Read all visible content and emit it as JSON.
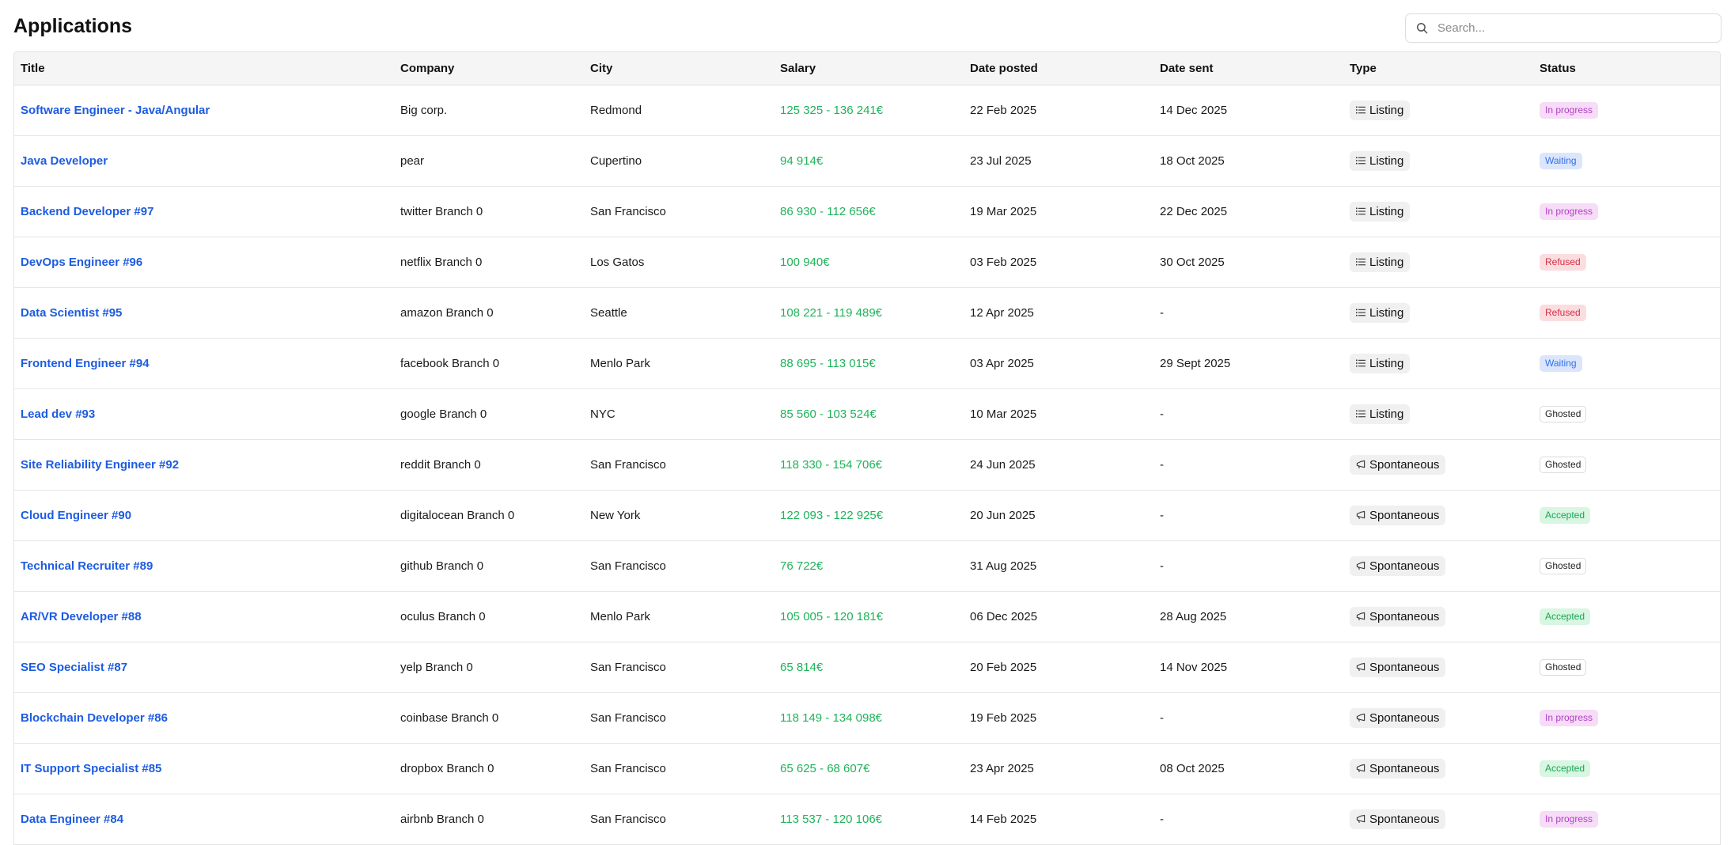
{
  "page": {
    "title": "Applications"
  },
  "search": {
    "placeholder": "Search..."
  },
  "table": {
    "headers": {
      "title": "Title",
      "company": "Company",
      "city": "City",
      "salary": "Salary",
      "date_posted": "Date posted",
      "date_sent": "Date sent",
      "type": "Type",
      "status": "Status"
    },
    "rows": [
      {
        "title": "Software Engineer - Java/Angular",
        "company": "Big corp.",
        "city": "Redmond",
        "salary": "125 325 - 136 241€",
        "date_posted": "22 Feb 2025",
        "date_sent": "14 Dec 2025",
        "type": "Listing",
        "type_icon": "list-icon",
        "status": "In progress",
        "status_key": "inprogress"
      },
      {
        "title": "Java Developer",
        "company": "pear",
        "city": "Cupertino",
        "salary": "94 914€",
        "date_posted": "23 Jul 2025",
        "date_sent": "18 Oct 2025",
        "type": "Listing",
        "type_icon": "list-icon",
        "status": "Waiting",
        "status_key": "waiting"
      },
      {
        "title": "Backend Developer #97",
        "company": "twitter Branch 0",
        "city": "San Francisco",
        "salary": "86 930 - 112 656€",
        "date_posted": "19 Mar 2025",
        "date_sent": "22 Dec 2025",
        "type": "Listing",
        "type_icon": "list-icon",
        "status": "In progress",
        "status_key": "inprogress"
      },
      {
        "title": "DevOps Engineer #96",
        "company": "netflix Branch 0",
        "city": "Los Gatos",
        "salary": "100 940€",
        "date_posted": "03 Feb 2025",
        "date_sent": "30 Oct 2025",
        "type": "Listing",
        "type_icon": "list-icon",
        "status": "Refused",
        "status_key": "refused"
      },
      {
        "title": "Data Scientist #95",
        "company": "amazon Branch 0",
        "city": "Seattle",
        "salary": "108 221 - 119 489€",
        "date_posted": "12 Apr 2025",
        "date_sent": "-",
        "type": "Listing",
        "type_icon": "list-icon",
        "status": "Refused",
        "status_key": "refused"
      },
      {
        "title": "Frontend Engineer #94",
        "company": "facebook Branch 0",
        "city": "Menlo Park",
        "salary": "88 695 - 113 015€",
        "date_posted": "03 Apr 2025",
        "date_sent": "29 Sept 2025",
        "type": "Listing",
        "type_icon": "list-icon",
        "status": "Waiting",
        "status_key": "waiting"
      },
      {
        "title": "Lead dev #93",
        "company": "google Branch 0",
        "city": "NYC",
        "salary": "85 560 - 103 524€",
        "date_posted": "10 Mar 2025",
        "date_sent": "-",
        "type": "Listing",
        "type_icon": "list-icon",
        "status": "Ghosted",
        "status_key": "ghosted"
      },
      {
        "title": "Site Reliability Engineer #92",
        "company": "reddit Branch 0",
        "city": "San Francisco",
        "salary": "118 330 - 154 706€",
        "date_posted": "24 Jun 2025",
        "date_sent": "-",
        "type": "Spontaneous",
        "type_icon": "megaphone-icon",
        "status": "Ghosted",
        "status_key": "ghosted"
      },
      {
        "title": "Cloud Engineer #90",
        "company": "digitalocean Branch 0",
        "city": "New York",
        "salary": "122 093 - 122 925€",
        "date_posted": "20 Jun 2025",
        "date_sent": "-",
        "type": "Spontaneous",
        "type_icon": "megaphone-icon",
        "status": "Accepted",
        "status_key": "accepted"
      },
      {
        "title": "Technical Recruiter #89",
        "company": "github Branch 0",
        "city": "San Francisco",
        "salary": "76 722€",
        "date_posted": "31 Aug 2025",
        "date_sent": "-",
        "type": "Spontaneous",
        "type_icon": "megaphone-icon",
        "status": "Ghosted",
        "status_key": "ghosted"
      },
      {
        "title": "AR/VR Developer #88",
        "company": "oculus Branch 0",
        "city": "Menlo Park",
        "salary": "105 005 - 120 181€",
        "date_posted": "06 Dec 2025",
        "date_sent": "28 Aug 2025",
        "type": "Spontaneous",
        "type_icon": "megaphone-icon",
        "status": "Accepted",
        "status_key": "accepted"
      },
      {
        "title": "SEO Specialist #87",
        "company": "yelp Branch 0",
        "city": "San Francisco",
        "salary": "65 814€",
        "date_posted": "20 Feb 2025",
        "date_sent": "14 Nov 2025",
        "type": "Spontaneous",
        "type_icon": "megaphone-icon",
        "status": "Ghosted",
        "status_key": "ghosted"
      },
      {
        "title": "Blockchain Developer #86",
        "company": "coinbase Branch 0",
        "city": "San Francisco",
        "salary": "118 149 - 134 098€",
        "date_posted": "19 Feb 2025",
        "date_sent": "-",
        "type": "Spontaneous",
        "type_icon": "megaphone-icon",
        "status": "In progress",
        "status_key": "inprogress"
      },
      {
        "title": "IT Support Specialist #85",
        "company": "dropbox Branch 0",
        "city": "San Francisco",
        "salary": "65 625 - 68 607€",
        "date_posted": "23 Apr 2025",
        "date_sent": "08 Oct 2025",
        "type": "Spontaneous",
        "type_icon": "megaphone-icon",
        "status": "Accepted",
        "status_key": "accepted"
      },
      {
        "title": "Data Engineer #84",
        "company": "airbnb Branch 0",
        "city": "San Francisco",
        "salary": "113 537 - 120 106€",
        "date_posted": "14 Feb 2025",
        "date_sent": "-",
        "type": "Spontaneous",
        "type_icon": "megaphone-icon",
        "status": "In progress",
        "status_key": "inprogress"
      }
    ]
  },
  "colors": {
    "link": "#1d5ce0",
    "salary": "#1fb35a",
    "status_inprogress": "#b33fc7",
    "status_waiting": "#3470e6",
    "status_refused": "#d62e43",
    "status_accepted": "#1aa552",
    "status_ghosted": "#222222"
  }
}
